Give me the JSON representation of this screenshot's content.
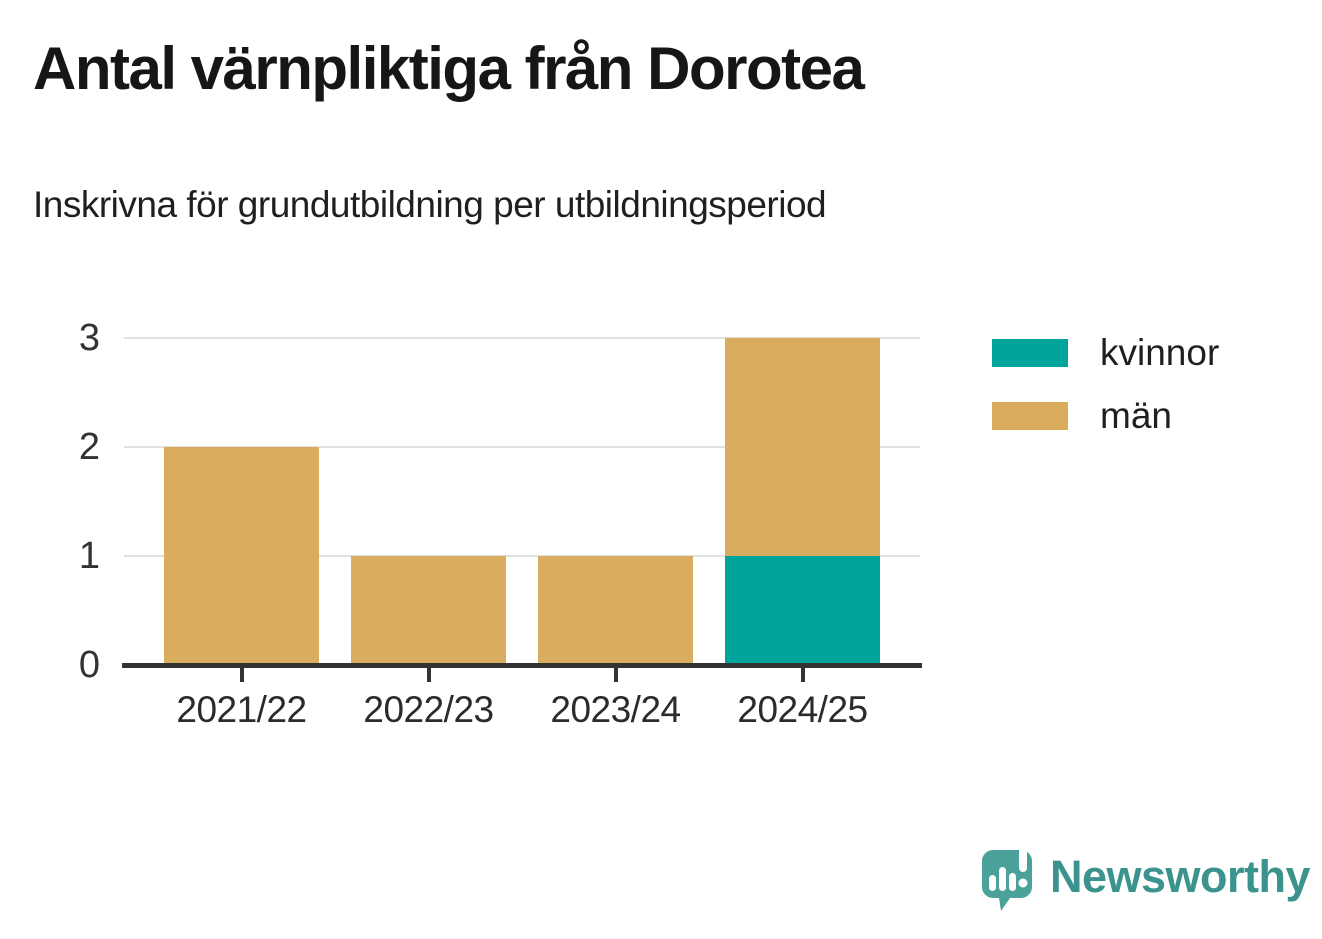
{
  "header": {
    "title": "Antal värnpliktiga från Dorotea",
    "subtitle": "Inskrivna för grundutbildning per utbildningsperiod"
  },
  "chart_data": {
    "type": "bar",
    "stacked": true,
    "categories": [
      "2021/22",
      "2022/23",
      "2023/24",
      "2024/25"
    ],
    "series": [
      {
        "name": "kvinnor",
        "color": "#00a49a",
        "values": [
          0,
          0,
          0,
          1
        ]
      },
      {
        "name": "män",
        "color": "#d9ac5e",
        "values": [
          2,
          1,
          1,
          2
        ]
      }
    ],
    "title": "Antal värnpliktiga från Dorotea",
    "subtitle": "Inskrivna för grundutbildning per utbildningsperiod",
    "xlabel": "",
    "ylabel": "",
    "ylim": [
      0,
      3
    ],
    "yticks": [
      0,
      1,
      2,
      3
    ],
    "grid": "horizontal",
    "legend_position": "right"
  },
  "colors": {
    "grid": "#e1e1e1",
    "axis": "#333333",
    "logo": "#3a938c",
    "logo_icon": "#4ba29b"
  },
  "footer": {
    "brand_name": "Newsworthy"
  },
  "icons": {
    "logo": "speech-bubble-bar-chart-exclamation"
  }
}
